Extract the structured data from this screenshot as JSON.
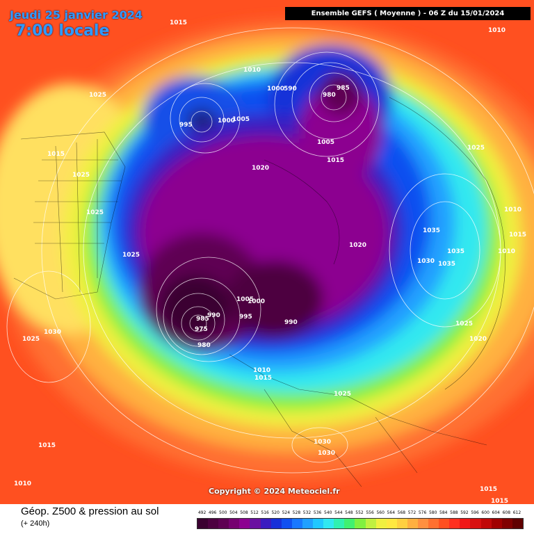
{
  "header": {
    "date": "Jeudi 25 janvier 2024",
    "time": "7:00 locale",
    "model_info": "Ensemble GEFS  ( Moyenne )  -  06 Z du 15/01/2024"
  },
  "copyright": "Copyright © 2024 Meteociel.fr",
  "footer": {
    "title": "Géop. Z500 & pression au sol",
    "subtitle": "(+ 240h)"
  },
  "scale": {
    "labels": [
      "492",
      "496",
      "500",
      "504",
      "508",
      "512",
      "516",
      "520",
      "524",
      "528",
      "532",
      "536",
      "540",
      "544",
      "548",
      "552",
      "556",
      "560",
      "564",
      "568",
      "572",
      "576",
      "580",
      "584",
      "588",
      "592",
      "596",
      "600",
      "604",
      "608",
      "612"
    ],
    "colors": [
      "#3a0030",
      "#4d0040",
      "#5e0052",
      "#760070",
      "#8c0090",
      "#6a10a0",
      "#3a1cc0",
      "#1830d8",
      "#1050f0",
      "#1878ff",
      "#20a0ff",
      "#20c8ff",
      "#30e8f0",
      "#30f0b0",
      "#40f070",
      "#80f040",
      "#c0f040",
      "#f0f040",
      "#ffe840",
      "#ffd040",
      "#ffb040",
      "#ff9040",
      "#ff7030",
      "#ff5020",
      "#ff3020",
      "#f01818",
      "#d81010",
      "#c00808",
      "#a00000",
      "#800000",
      "#600000"
    ]
  },
  "pressure_labels": [
    {
      "text": "1015"
    },
    {
      "text": "1010"
    },
    {
      "text": "1025"
    },
    {
      "text": "1010"
    },
    {
      "text": "995"
    },
    {
      "text": "1000"
    },
    {
      "text": "1005"
    },
    {
      "text": "1000"
    },
    {
      "text": "590"
    },
    {
      "text": "980"
    },
    {
      "text": "985"
    },
    {
      "text": "1015"
    },
    {
      "text": "1025"
    },
    {
      "text": "1025"
    },
    {
      "text": "1005"
    },
    {
      "text": "1015"
    },
    {
      "text": "1020"
    },
    {
      "text": "1025"
    },
    {
      "text": "1010"
    },
    {
      "text": "1015"
    },
    {
      "text": "1035"
    },
    {
      "text": "1035"
    },
    {
      "text": "1030"
    },
    {
      "text": "1035"
    },
    {
      "text": "1010"
    },
    {
      "text": "1020"
    },
    {
      "text": "1025"
    },
    {
      "text": "1005"
    },
    {
      "text": "1000"
    },
    {
      "text": "995"
    },
    {
      "text": "985"
    },
    {
      "text": "990"
    },
    {
      "text": "975"
    },
    {
      "text": "980"
    },
    {
      "text": "990"
    },
    {
      "text": "1025"
    },
    {
      "text": "1030"
    },
    {
      "text": "1020"
    },
    {
      "text": "1025"
    },
    {
      "text": "1010"
    },
    {
      "text": "1015"
    },
    {
      "text": "1025"
    },
    {
      "text": "1030"
    },
    {
      "text": "1030"
    },
    {
      "text": "1015"
    },
    {
      "text": "1010"
    },
    {
      "text": "1015"
    },
    {
      "text": "1015"
    }
  ]
}
